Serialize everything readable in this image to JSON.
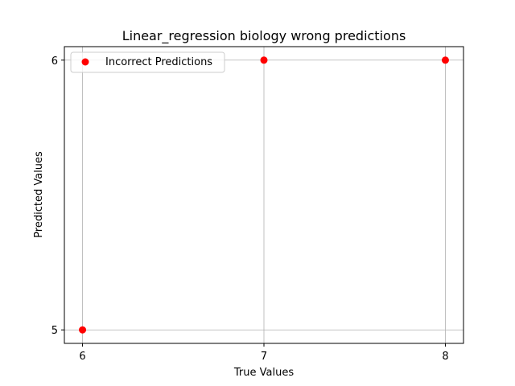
{
  "chart_data": {
    "type": "scatter",
    "title": "Linear_regression biology wrong predictions",
    "xlabel": "True Values",
    "ylabel": "Predicted Values",
    "xlim": [
      5.9,
      8.1
    ],
    "ylim": [
      4.95,
      6.05
    ],
    "xticks": [
      6,
      7,
      8
    ],
    "yticks": [
      5,
      6
    ],
    "grid": true,
    "legend_position": "top-left",
    "series": [
      {
        "name": "Incorrect Predictions",
        "color": "#ff0000",
        "points": [
          {
            "x": 6,
            "y": 5
          },
          {
            "x": 7,
            "y": 6
          },
          {
            "x": 8,
            "y": 6
          }
        ]
      }
    ]
  }
}
